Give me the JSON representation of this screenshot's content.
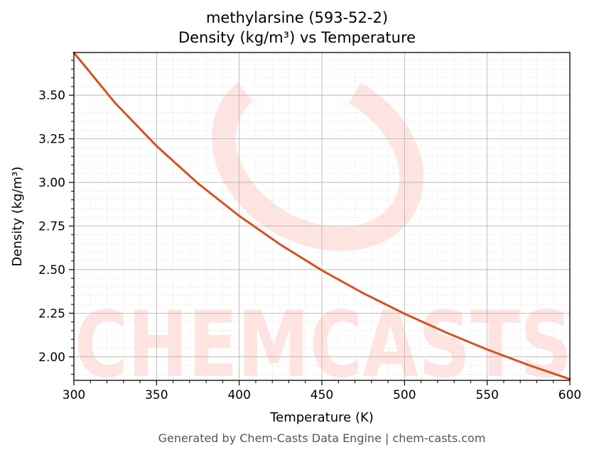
{
  "title": {
    "line1": "methylarsine (593-52-2)",
    "line2": "Density (kg/m³) vs Temperature"
  },
  "footer": "Generated by Chem-Casts Data Engine | chem-casts.com",
  "watermark": "CHEMCASTS",
  "colors": {
    "line": "#d4521f",
    "watermark": "#ffe0dc",
    "grid_major": "#b0b0b0",
    "grid_minor": "#dcdcdc"
  },
  "chart_data": {
    "type": "line",
    "xlabel": "Temperature (K)",
    "ylabel": "Density (kg/m³)",
    "xlim": [
      300,
      600
    ],
    "ylim": [
      1.865,
      3.745
    ],
    "xticks": [
      300,
      350,
      400,
      450,
      500,
      550,
      600
    ],
    "xtick_labels": [
      "300",
      "350",
      "400",
      "450",
      "500",
      "550",
      "600"
    ],
    "yticks": [
      2.0,
      2.25,
      2.5,
      2.75,
      3.0,
      3.25,
      3.5
    ],
    "ytick_labels": [
      "2.00",
      "2.25",
      "2.50",
      "2.75",
      "3.00",
      "3.25",
      "3.50"
    ],
    "grid": true,
    "series": [
      {
        "x": [
          300,
          325,
          350,
          375,
          400,
          425,
          450,
          475,
          500,
          525,
          550,
          575,
          600
        ],
        "y": [
          3.744,
          3.455,
          3.209,
          2.995,
          2.808,
          2.643,
          2.496,
          2.365,
          2.247,
          2.14,
          2.042,
          1.953,
          1.872
        ]
      }
    ]
  }
}
